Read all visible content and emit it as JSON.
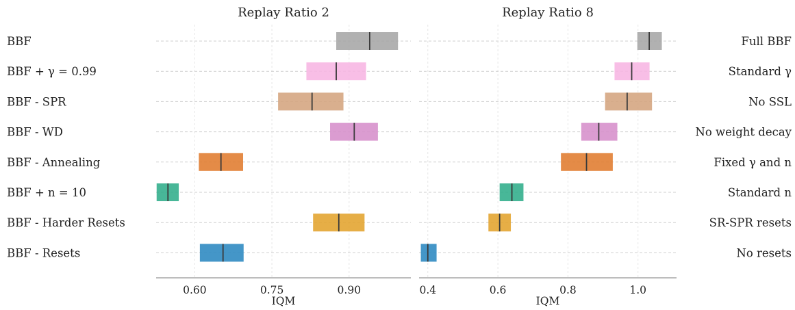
{
  "chart_data": [
    {
      "type": "interval",
      "title": "Replay Ratio 2",
      "xlabel": "IQM",
      "xlim": [
        0.525,
        1.02
      ],
      "xticks": [
        0.6,
        0.75,
        0.9
      ],
      "xtick_labels": [
        "0.60",
        "0.75",
        "0.90"
      ],
      "grid": true,
      "categories": [
        "BBF",
        "BBF + γ = 0.99",
        "BBF - SPR",
        "BBF - WD",
        "BBF - Annealing",
        "BBF + n = 10",
        "BBF - Harder Resets",
        "BBF - Resets"
      ],
      "series": [
        {
          "low": 0.875,
          "value": 0.94,
          "high": 0.995,
          "color": "#a6a6a6"
        },
        {
          "low": 0.817,
          "value": 0.875,
          "high": 0.933,
          "color": "#f7b5e3"
        },
        {
          "low": 0.762,
          "value": 0.828,
          "high": 0.889,
          "color": "#d4a47e"
        },
        {
          "low": 0.863,
          "value": 0.91,
          "high": 0.956,
          "color": "#d68ecb"
        },
        {
          "low": 0.608,
          "value": 0.651,
          "high": 0.694,
          "color": "#e07b2e"
        },
        {
          "low": 0.526,
          "value": 0.548,
          "high": 0.569,
          "color": "#2fad8a"
        },
        {
          "low": 0.83,
          "value": 0.88,
          "high": 0.93,
          "color": "#e3a32c"
        },
        {
          "low": 0.61,
          "value": 0.655,
          "high": 0.695,
          "color": "#2a88c0"
        }
      ]
    },
    {
      "type": "interval",
      "title": "Replay Ratio 8",
      "xlabel": "IQM",
      "xlim": [
        0.375,
        1.11
      ],
      "xticks": [
        0.4,
        0.6,
        0.8,
        1.0
      ],
      "xtick_labels": [
        "0.4",
        "0.6",
        "0.8",
        "1.0"
      ],
      "grid": true,
      "categories": [
        "Full BBF",
        "Standard γ",
        "No SSL",
        "No weight decay",
        "Fixed γ and n",
        "Standard n",
        "SR-SPR resets",
        "No resets"
      ],
      "series": [
        {
          "low": 0.998,
          "value": 1.032,
          "high": 1.068,
          "color": "#a6a6a6"
        },
        {
          "low": 0.933,
          "value": 0.982,
          "high": 1.033,
          "color": "#f7b5e3"
        },
        {
          "low": 0.906,
          "value": 0.969,
          "high": 1.04,
          "color": "#d4a47e"
        },
        {
          "low": 0.838,
          "value": 0.888,
          "high": 0.941,
          "color": "#d68ecb"
        },
        {
          "low": 0.78,
          "value": 0.853,
          "high": 0.928,
          "color": "#e07b2e"
        },
        {
          "low": 0.605,
          "value": 0.64,
          "high": 0.673,
          "color": "#2fad8a"
        },
        {
          "low": 0.573,
          "value": 0.605,
          "high": 0.637,
          "color": "#e3a32c"
        },
        {
          "low": 0.38,
          "value": 0.4,
          "high": 0.425,
          "color": "#2a88c0"
        }
      ]
    }
  ]
}
